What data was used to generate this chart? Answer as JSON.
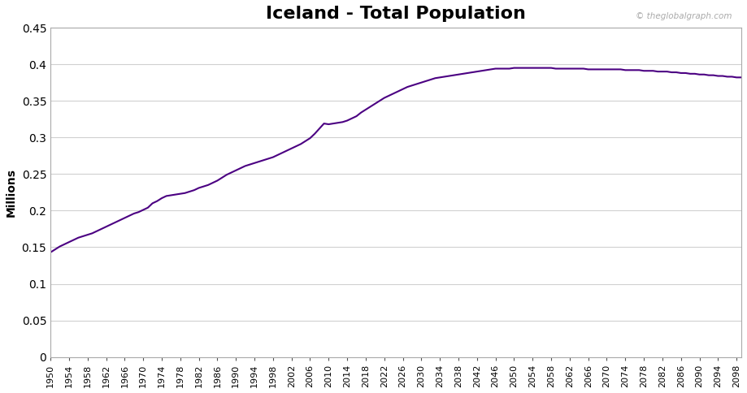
{
  "title": "Iceland - Total Population",
  "ylabel": "Millions",
  "watermark": "© theglobalgraph.com",
  "line_color": "#4B0082",
  "background_color": "#ffffff",
  "grid_color": "#d0d0d0",
  "ylim": [
    0,
    0.45
  ],
  "yticks": [
    0,
    0.05,
    0.1,
    0.15,
    0.2,
    0.25,
    0.3,
    0.35,
    0.4,
    0.45
  ],
  "ytick_labels": [
    "0",
    "0.05",
    "0.1",
    "0.15",
    "0.2",
    "0.25",
    "0.3",
    "0.35",
    "0.4",
    "0.45"
  ],
  "years": [
    1950,
    1951,
    1952,
    1953,
    1954,
    1955,
    1956,
    1957,
    1958,
    1959,
    1960,
    1961,
    1962,
    1963,
    1964,
    1965,
    1966,
    1967,
    1968,
    1969,
    1970,
    1971,
    1972,
    1973,
    1974,
    1975,
    1976,
    1977,
    1978,
    1979,
    1980,
    1981,
    1982,
    1983,
    1984,
    1985,
    1986,
    1987,
    1988,
    1989,
    1990,
    1991,
    1992,
    1993,
    1994,
    1995,
    1996,
    1997,
    1998,
    1999,
    2000,
    2001,
    2002,
    2003,
    2004,
    2005,
    2006,
    2007,
    2008,
    2009,
    2010,
    2011,
    2012,
    2013,
    2014,
    2015,
    2016,
    2017,
    2018,
    2019,
    2020,
    2021,
    2022,
    2023,
    2024,
    2025,
    2026,
    2027,
    2028,
    2029,
    2030,
    2031,
    2032,
    2033,
    2034,
    2035,
    2036,
    2037,
    2038,
    2039,
    2040,
    2041,
    2042,
    2043,
    2044,
    2045,
    2046,
    2047,
    2048,
    2049,
    2050,
    2051,
    2052,
    2053,
    2054,
    2055,
    2056,
    2057,
    2058,
    2059,
    2060,
    2061,
    2062,
    2063,
    2064,
    2065,
    2066,
    2067,
    2068,
    2069,
    2070,
    2071,
    2072,
    2073,
    2074,
    2075,
    2076,
    2077,
    2078,
    2079,
    2080,
    2081,
    2082,
    2083,
    2084,
    2085,
    2086,
    2087,
    2088,
    2089,
    2090,
    2091,
    2092,
    2093,
    2094,
    2095,
    2096,
    2097,
    2098,
    2099
  ],
  "population": [
    0.143,
    0.147,
    0.151,
    0.154,
    0.157,
    0.16,
    0.163,
    0.165,
    0.167,
    0.169,
    0.172,
    0.175,
    0.178,
    0.181,
    0.184,
    0.187,
    0.19,
    0.193,
    0.196,
    0.198,
    0.201,
    0.204,
    0.21,
    0.213,
    0.217,
    0.22,
    0.221,
    0.222,
    0.223,
    0.224,
    0.226,
    0.228,
    0.231,
    0.233,
    0.235,
    0.238,
    0.241,
    0.245,
    0.249,
    0.252,
    0.255,
    0.258,
    0.261,
    0.263,
    0.265,
    0.267,
    0.269,
    0.271,
    0.273,
    0.276,
    0.279,
    0.282,
    0.285,
    0.288,
    0.291,
    0.295,
    0.299,
    0.305,
    0.312,
    0.319,
    0.318,
    0.319,
    0.32,
    0.321,
    0.323,
    0.326,
    0.329,
    0.334,
    0.338,
    0.342,
    0.346,
    0.35,
    0.354,
    0.357,
    0.36,
    0.363,
    0.366,
    0.369,
    0.371,
    0.373,
    0.375,
    0.377,
    0.379,
    0.381,
    0.382,
    0.383,
    0.384,
    0.385,
    0.386,
    0.387,
    0.388,
    0.389,
    0.39,
    0.391,
    0.392,
    0.393,
    0.394,
    0.394,
    0.394,
    0.394,
    0.395,
    0.395,
    0.395,
    0.395,
    0.395,
    0.395,
    0.395,
    0.395,
    0.395,
    0.394,
    0.394,
    0.394,
    0.394,
    0.394,
    0.394,
    0.394,
    0.393,
    0.393,
    0.393,
    0.393,
    0.393,
    0.393,
    0.393,
    0.393,
    0.392,
    0.392,
    0.392,
    0.392,
    0.391,
    0.391,
    0.391,
    0.39,
    0.39,
    0.39,
    0.389,
    0.389,
    0.388,
    0.388,
    0.387,
    0.387,
    0.386,
    0.386,
    0.385,
    0.385,
    0.384,
    0.384,
    0.383,
    0.383,
    0.382,
    0.382
  ],
  "xtick_years": [
    1950,
    1954,
    1958,
    1962,
    1966,
    1970,
    1974,
    1978,
    1982,
    1986,
    1990,
    1994,
    1998,
    2002,
    2006,
    2010,
    2014,
    2018,
    2022,
    2026,
    2030,
    2034,
    2038,
    2042,
    2046,
    2050,
    2054,
    2058,
    2062,
    2066,
    2070,
    2074,
    2078,
    2082,
    2086,
    2090,
    2094,
    2098
  ],
  "border_color": "#aaaaaa",
  "tick_color": "#555555",
  "title_fontsize": 16,
  "ylabel_fontsize": 10,
  "ytick_fontsize": 10,
  "xtick_fontsize": 8
}
